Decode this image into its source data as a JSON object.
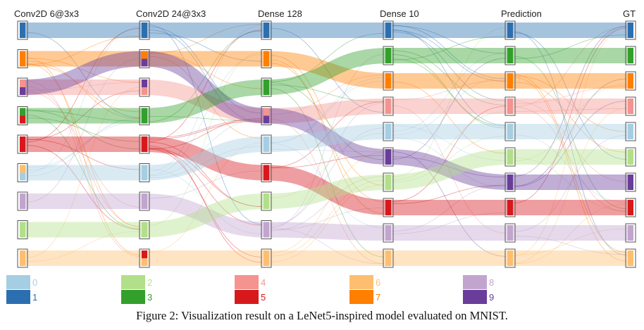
{
  "layers": [
    "Conv2D 6@3x3",
    "Conv2D 24@3x3",
    "Dense 128",
    "Dense 10",
    "Prediction",
    "GT"
  ],
  "classes": [
    {
      "label": "0",
      "color": "#a6cee3"
    },
    {
      "label": "1",
      "color": "#2c6fb0"
    },
    {
      "label": "2",
      "color": "#b2df8a"
    },
    {
      "label": "3",
      "color": "#33a02c"
    },
    {
      "label": "4",
      "color": "#f4938f"
    },
    {
      "label": "5",
      "color": "#d7191c"
    },
    {
      "label": "6",
      "color": "#fdbf6f"
    },
    {
      "label": "7",
      "color": "#ff7f00"
    },
    {
      "label": "8",
      "color": "#c2a5cf"
    },
    {
      "label": "9",
      "color": "#6a3d9a"
    }
  ],
  "node_order": [
    [
      1,
      7,
      4,
      3,
      5,
      0,
      8,
      2,
      6
    ],
    [
      1,
      7,
      4,
      3,
      5,
      0,
      8,
      2,
      6
    ],
    [
      1,
      7,
      3,
      4,
      0,
      5,
      2,
      8,
      6
    ],
    [
      1,
      3,
      7,
      4,
      0,
      9,
      2,
      5,
      8,
      6
    ],
    [
      1,
      3,
      7,
      4,
      0,
      2,
      9,
      5,
      8,
      6
    ],
    [
      1,
      3,
      7,
      4,
      0,
      2,
      9,
      5,
      8,
      6
    ]
  ],
  "node_mixes": [
    [
      [
        1
      ],
      [
        7
      ],
      [
        4,
        9
      ],
      [
        3,
        5
      ],
      [
        5
      ],
      [
        6,
        0
      ],
      [
        8
      ],
      [
        2
      ],
      [
        6
      ]
    ],
    [
      [
        1
      ],
      [
        7,
        9
      ],
      [
        9,
        4
      ],
      [
        3
      ],
      [
        5
      ],
      [
        0
      ],
      [
        8
      ],
      [
        2
      ],
      [
        5,
        6
      ]
    ],
    [
      [
        1
      ],
      [
        7
      ],
      [
        3
      ],
      [
        4,
        9
      ],
      [
        0
      ],
      [
        5
      ],
      [
        2
      ],
      [
        8
      ],
      [
        6
      ]
    ],
    [
      [
        1
      ],
      [
        3
      ],
      [
        7
      ],
      [
        4
      ],
      [
        0
      ],
      [
        9
      ],
      [
        2
      ],
      [
        5
      ],
      [
        8
      ],
      [
        6
      ]
    ],
    [
      [
        1
      ],
      [
        3
      ],
      [
        7
      ],
      [
        4
      ],
      [
        0
      ],
      [
        2
      ],
      [
        9
      ],
      [
        5
      ],
      [
        8
      ],
      [
        6
      ]
    ],
    [
      [
        1
      ],
      [
        3
      ],
      [
        7
      ],
      [
        4
      ],
      [
        0
      ],
      [
        2
      ],
      [
        9
      ],
      [
        5
      ],
      [
        8
      ],
      [
        6
      ]
    ]
  ],
  "major_flows": [
    {
      "class": 1,
      "path": [
        0,
        0,
        0,
        0,
        0,
        0
      ]
    },
    {
      "class": 7,
      "path": [
        1,
        1,
        1,
        2,
        2,
        2
      ]
    },
    {
      "class": 4,
      "path": [
        2,
        2,
        3,
        3,
        3,
        3
      ]
    },
    {
      "class": 9,
      "path": [
        2,
        1,
        3,
        5,
        6,
        6
      ]
    },
    {
      "class": 3,
      "path": [
        3,
        3,
        2,
        1,
        1,
        1
      ]
    },
    {
      "class": 5,
      "path": [
        4,
        4,
        5,
        7,
        7,
        7
      ]
    },
    {
      "class": 0,
      "path": [
        5,
        5,
        4,
        4,
        4,
        4
      ]
    },
    {
      "class": 8,
      "path": [
        6,
        6,
        7,
        8,
        8,
        8
      ]
    },
    {
      "class": 2,
      "path": [
        7,
        7,
        6,
        6,
        5,
        5
      ]
    },
    {
      "class": 6,
      "path": [
        8,
        8,
        8,
        9,
        9,
        9
      ]
    }
  ],
  "caption": "Figure 2: Visualization result on a LeNet5-inspired model evaluated on MNIST."
}
